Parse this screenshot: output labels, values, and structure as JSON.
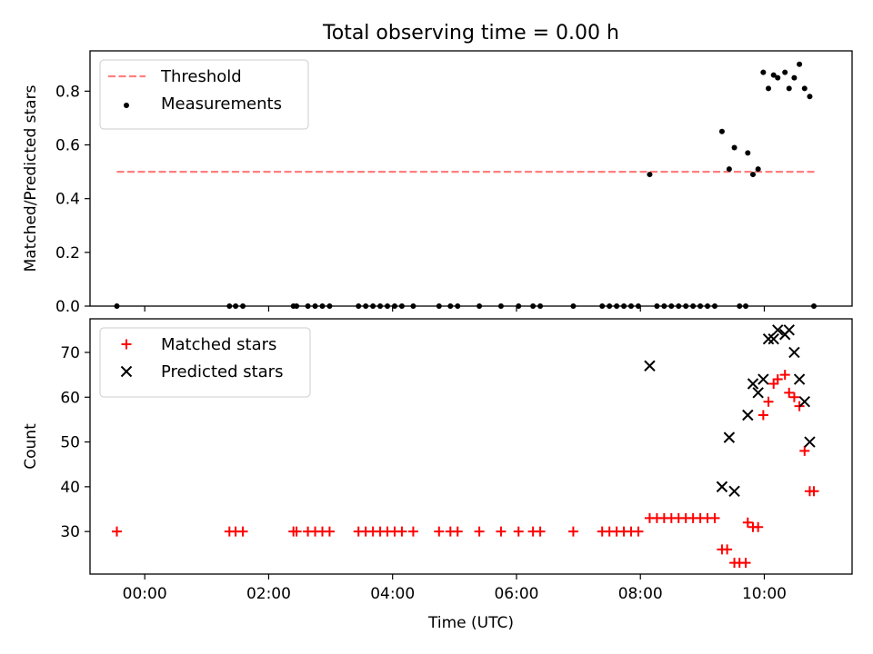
{
  "title": "Total observing time = 0.00 h",
  "chart_data": [
    {
      "type": "scatter",
      "panel": "top",
      "ylabel": "Matched/Predicted stars",
      "ylim": [
        0,
        0.95
      ],
      "yticks": [
        0.0,
        0.2,
        0.4,
        0.6,
        0.8
      ],
      "ytick_labels": [
        "0.0",
        "0.2",
        "0.4",
        "0.6",
        "0.8"
      ],
      "legend_position": "upper-left",
      "threshold": {
        "name": "Threshold",
        "value": 0.5,
        "x_range": [
          "23:33",
          "10:49"
        ],
        "color": "#ff7f7f",
        "style": "dashed"
      },
      "series": [
        {
          "name": "Measurements",
          "color": "#000000",
          "marker": "dot",
          "points": [
            [
              "23:33",
              0.0
            ],
            [
              "01:22",
              0.0
            ],
            [
              "01:28",
              0.0
            ],
            [
              "01:35",
              0.0
            ],
            [
              "02:24",
              0.0
            ],
            [
              "02:27",
              0.0
            ],
            [
              "02:38",
              0.0
            ],
            [
              "02:45",
              0.0
            ],
            [
              "02:52",
              0.0
            ],
            [
              "02:59",
              0.0
            ],
            [
              "03:27",
              0.0
            ],
            [
              "03:34",
              0.0
            ],
            [
              "03:41",
              0.0
            ],
            [
              "03:48",
              0.0
            ],
            [
              "03:55",
              0.0
            ],
            [
              "04:02",
              0.0
            ],
            [
              "04:09",
              0.0
            ],
            [
              "04:20",
              0.0
            ],
            [
              "04:45",
              0.0
            ],
            [
              "04:56",
              0.0
            ],
            [
              "05:03",
              0.0
            ],
            [
              "05:24",
              0.0
            ],
            [
              "05:45",
              0.0
            ],
            [
              "06:02",
              0.0
            ],
            [
              "06:16",
              0.0
            ],
            [
              "06:23",
              0.0
            ],
            [
              "06:55",
              0.0
            ],
            [
              "07:23",
              0.0
            ],
            [
              "07:30",
              0.0
            ],
            [
              "07:37",
              0.0
            ],
            [
              "07:44",
              0.0
            ],
            [
              "07:51",
              0.0
            ],
            [
              "07:58",
              0.0
            ],
            [
              "08:09",
              0.49
            ],
            [
              "08:16",
              0.0
            ],
            [
              "08:23",
              0.0
            ],
            [
              "08:30",
              0.0
            ],
            [
              "08:37",
              0.0
            ],
            [
              "08:44",
              0.0
            ],
            [
              "08:51",
              0.0
            ],
            [
              "08:58",
              0.0
            ],
            [
              "09:05",
              0.0
            ],
            [
              "09:12",
              0.0
            ],
            [
              "09:19",
              0.65
            ],
            [
              "09:26",
              0.51
            ],
            [
              "09:31",
              0.59
            ],
            [
              "09:36",
              0.0
            ],
            [
              "09:42",
              0.0
            ],
            [
              "09:44",
              0.57
            ],
            [
              "09:49",
              0.49
            ],
            [
              "09:54",
              0.51
            ],
            [
              "09:59",
              0.87
            ],
            [
              "10:04",
              0.81
            ],
            [
              "10:09",
              0.86
            ],
            [
              "10:13",
              0.85
            ],
            [
              "10:20",
              0.87
            ],
            [
              "10:24",
              0.81
            ],
            [
              "10:29",
              0.85
            ],
            [
              "10:34",
              0.9
            ],
            [
              "10:39",
              0.81
            ],
            [
              "10:44",
              0.78
            ],
            [
              "10:48",
              0.0
            ]
          ]
        }
      ]
    },
    {
      "type": "scatter",
      "panel": "bottom",
      "ylabel": "Count",
      "xlabel": "Time (UTC)",
      "ylim": [
        20.5,
        77.5
      ],
      "yticks": [
        30,
        40,
        50,
        60,
        70
      ],
      "ytick_labels": [
        "30",
        "40",
        "50",
        "60",
        "70"
      ],
      "xlim": [
        "23:07",
        "11:25"
      ],
      "xticks": [
        "00:00",
        "02:00",
        "04:00",
        "06:00",
        "08:00",
        "10:00"
      ],
      "xtick_labels": [
        "00:00",
        "02:00",
        "04:00",
        "06:00",
        "08:00",
        "10:00"
      ],
      "legend_position": "upper-left",
      "series": [
        {
          "name": "Matched stars",
          "color": "#ff0000",
          "marker": "plus",
          "points": [
            [
              "23:33",
              30
            ],
            [
              "01:22",
              30
            ],
            [
              "01:28",
              30
            ],
            [
              "01:35",
              30
            ],
            [
              "02:24",
              30
            ],
            [
              "02:27",
              30
            ],
            [
              "02:38",
              30
            ],
            [
              "02:45",
              30
            ],
            [
              "02:52",
              30
            ],
            [
              "02:59",
              30
            ],
            [
              "03:27",
              30
            ],
            [
              "03:34",
              30
            ],
            [
              "03:41",
              30
            ],
            [
              "03:48",
              30
            ],
            [
              "03:55",
              30
            ],
            [
              "04:02",
              30
            ],
            [
              "04:09",
              30
            ],
            [
              "04:20",
              30
            ],
            [
              "04:45",
              30
            ],
            [
              "04:56",
              30
            ],
            [
              "05:03",
              30
            ],
            [
              "05:24",
              30
            ],
            [
              "05:45",
              30
            ],
            [
              "06:02",
              30
            ],
            [
              "06:16",
              30
            ],
            [
              "06:23",
              30
            ],
            [
              "06:55",
              30
            ],
            [
              "07:23",
              30
            ],
            [
              "07:30",
              30
            ],
            [
              "07:37",
              30
            ],
            [
              "07:44",
              30
            ],
            [
              "07:51",
              30
            ],
            [
              "07:58",
              30
            ],
            [
              "08:09",
              33
            ],
            [
              "08:16",
              33
            ],
            [
              "08:23",
              33
            ],
            [
              "08:30",
              33
            ],
            [
              "08:37",
              33
            ],
            [
              "08:44",
              33
            ],
            [
              "08:51",
              33
            ],
            [
              "08:58",
              33
            ],
            [
              "09:05",
              33
            ],
            [
              "09:12",
              33
            ],
            [
              "09:19",
              26
            ],
            [
              "09:24",
              26
            ],
            [
              "09:31",
              23
            ],
            [
              "09:36",
              23
            ],
            [
              "09:42",
              23
            ],
            [
              "09:44",
              32
            ],
            [
              "09:49",
              31
            ],
            [
              "09:54",
              31
            ],
            [
              "09:59",
              56
            ],
            [
              "10:04",
              59
            ],
            [
              "10:09",
              63
            ],
            [
              "10:13",
              64
            ],
            [
              "10:20",
              65
            ],
            [
              "10:24",
              61
            ],
            [
              "10:29",
              60
            ],
            [
              "10:34",
              58
            ],
            [
              "10:39",
              48
            ],
            [
              "10:44",
              39
            ],
            [
              "10:48",
              39
            ]
          ]
        },
        {
          "name": "Predicted stars",
          "color": "#000000",
          "marker": "cross",
          "points": [
            [
              "08:09",
              67
            ],
            [
              "09:19",
              40
            ],
            [
              "09:26",
              51
            ],
            [
              "09:31",
              39
            ],
            [
              "09:44",
              56
            ],
            [
              "09:49",
              63
            ],
            [
              "09:54",
              61
            ],
            [
              "09:59",
              64
            ],
            [
              "10:04",
              73
            ],
            [
              "10:09",
              73
            ],
            [
              "10:13",
              75
            ],
            [
              "10:20",
              74
            ],
            [
              "10:24",
              75
            ],
            [
              "10:29",
              70
            ],
            [
              "10:34",
              64
            ],
            [
              "10:39",
              59
            ],
            [
              "10:44",
              50
            ]
          ]
        }
      ]
    }
  ]
}
